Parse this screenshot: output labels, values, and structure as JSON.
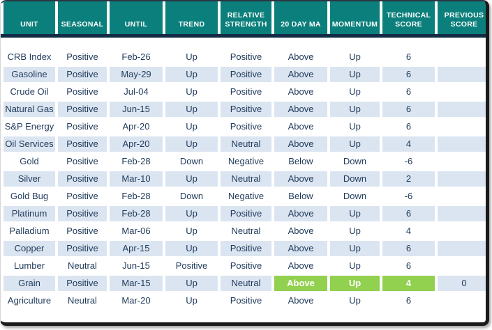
{
  "colors": {
    "header_bg": "#0b7f7b",
    "header_text": "#ffffff",
    "divider": "#132b44",
    "stripe": "#dbe5f1",
    "text": "#1f3a5a",
    "highlight": "#92d050",
    "highlight_text": "#ffffff"
  },
  "chart_data": {
    "type": "table",
    "title": "Commodity technical score table",
    "columns": [
      "UNIT",
      "SEASONAL",
      "UNTIL",
      "TREND",
      "RELATIVE STRENGTH",
      "20 DAY MA",
      "MOMENTUM",
      "TECHNICAL SCORE",
      "PREVIOUS SCORE"
    ],
    "rows": [
      {
        "cells": [
          "CRB Index",
          "Positive",
          "Feb-26",
          "Up",
          "Positive",
          "Above",
          "Up",
          "6",
          ""
        ],
        "highlight_cols": []
      },
      {
        "cells": [
          "Gasoline",
          "Positive",
          "May-29",
          "Up",
          "Positive",
          "Above",
          "Up",
          "6",
          ""
        ],
        "highlight_cols": []
      },
      {
        "cells": [
          "Crude Oil",
          "Positive",
          "Jul-04",
          "Up",
          "Positive",
          "Above",
          "Up",
          "6",
          ""
        ],
        "highlight_cols": []
      },
      {
        "cells": [
          "Natural Gas",
          "Positive",
          "Jun-15",
          "Up",
          "Positive",
          "Above",
          "Up",
          "6",
          ""
        ],
        "highlight_cols": []
      },
      {
        "cells": [
          "S&P Energy",
          "Positive",
          "Apr-20",
          "Up",
          "Positive",
          "Above",
          "Up",
          "6",
          ""
        ],
        "highlight_cols": []
      },
      {
        "cells": [
          "Oil Services",
          "Positive",
          "Apr-20",
          "Up",
          "Neutral",
          "Above",
          "Up",
          "4",
          ""
        ],
        "highlight_cols": []
      },
      {
        "cells": [
          "Gold",
          "Positive",
          "Feb-28",
          "Down",
          "Negative",
          "Below",
          "Down",
          "-6",
          ""
        ],
        "highlight_cols": []
      },
      {
        "cells": [
          "Silver",
          "Positive",
          "Mar-10",
          "Up",
          "Neutral",
          "Above",
          "Down",
          "2",
          ""
        ],
        "highlight_cols": []
      },
      {
        "cells": [
          "Gold Bug",
          "Positive",
          "Feb-28",
          "Down",
          "Negative",
          "Below",
          "Down",
          "-6",
          ""
        ],
        "highlight_cols": []
      },
      {
        "cells": [
          "Platinum",
          "Positive",
          "Feb-28",
          "Up",
          "Positive",
          "Above",
          "Up",
          "6",
          ""
        ],
        "highlight_cols": []
      },
      {
        "cells": [
          "Palladium",
          "Positive",
          "Mar-06",
          "Up",
          "Neutral",
          "Above",
          "Up",
          "4",
          ""
        ],
        "highlight_cols": []
      },
      {
        "cells": [
          "Copper",
          "Positive",
          "Apr-15",
          "Up",
          "Positive",
          "Above",
          "Up",
          "6",
          ""
        ],
        "highlight_cols": []
      },
      {
        "cells": [
          "Lumber",
          "Neutral",
          "Jun-15",
          "Positive",
          "Positive",
          "Above",
          "Up",
          "6",
          ""
        ],
        "highlight_cols": []
      },
      {
        "cells": [
          "Grain",
          "Positive",
          "Mar-15",
          "Up",
          "Neutral",
          "Above",
          "Up",
          "4",
          "0"
        ],
        "highlight_cols": [
          5,
          6,
          7
        ]
      },
      {
        "cells": [
          "Agriculture",
          "Neutral",
          "Mar-20",
          "Up",
          "Positive",
          "Above",
          "Up",
          "6",
          ""
        ],
        "highlight_cols": []
      }
    ]
  }
}
